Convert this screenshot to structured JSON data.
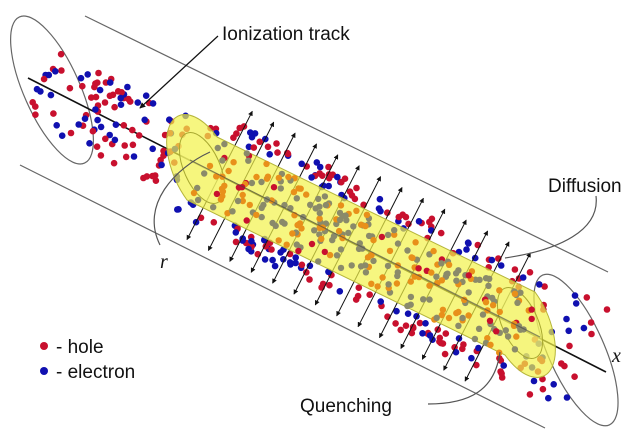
{
  "labels": {
    "ionization_track": "Ionization track",
    "diffusion": "Diffusion",
    "quenching": "Quenching",
    "radius": "r",
    "axis": "x"
  },
  "legend": {
    "hole": "- hole",
    "electron": "- electron"
  },
  "colors": {
    "hole": "#c8102e",
    "electron": "#1010b0",
    "quenched_core": "#f2f24a",
    "core_grey": "#8a8a6a",
    "core_orange": "#e8901a",
    "outline": "#555555"
  }
}
